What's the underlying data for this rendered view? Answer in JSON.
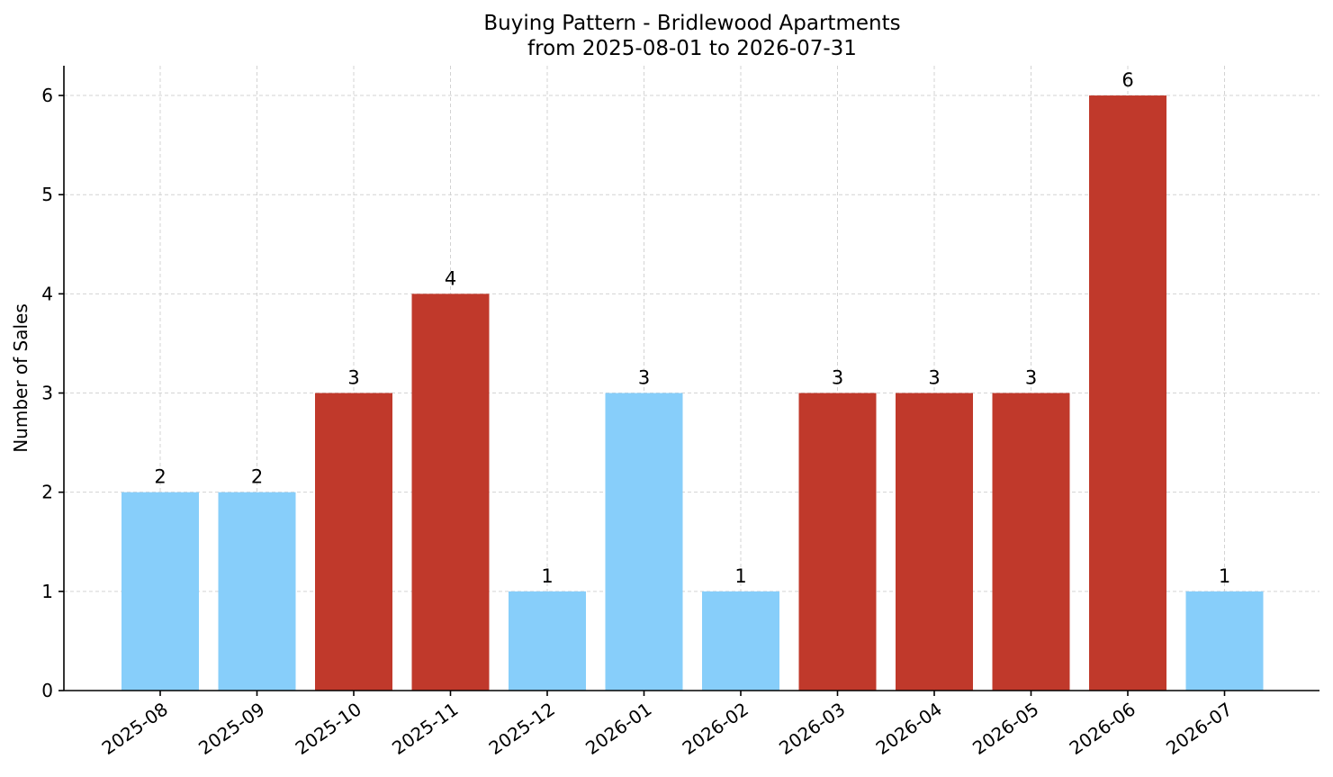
{
  "chart_data": {
    "type": "bar",
    "title": "Buying Pattern - Bridlewood Apartments",
    "subtitle": "from 2025-08-01 to 2026-07-31",
    "xlabel": "",
    "ylabel": "Number of Sales",
    "categories": [
      "2025-08",
      "2025-09",
      "2025-10",
      "2025-11",
      "2025-12",
      "2026-01",
      "2026-02",
      "2026-03",
      "2026-04",
      "2026-05",
      "2026-06",
      "2026-07"
    ],
    "values": [
      2,
      2,
      3,
      4,
      1,
      3,
      1,
      3,
      3,
      3,
      6,
      1
    ],
    "bar_colors": [
      "#87CEFA",
      "#87CEFA",
      "#C0392B",
      "#C0392B",
      "#87CEFA",
      "#87CEFA",
      "#87CEFA",
      "#C0392B",
      "#C0392B",
      "#C0392B",
      "#C0392B",
      "#87CEFA"
    ],
    "yticks": [
      0,
      1,
      2,
      3,
      4,
      5,
      6
    ],
    "ylim": [
      0,
      6.3
    ],
    "grid": true,
    "legend": "none"
  }
}
